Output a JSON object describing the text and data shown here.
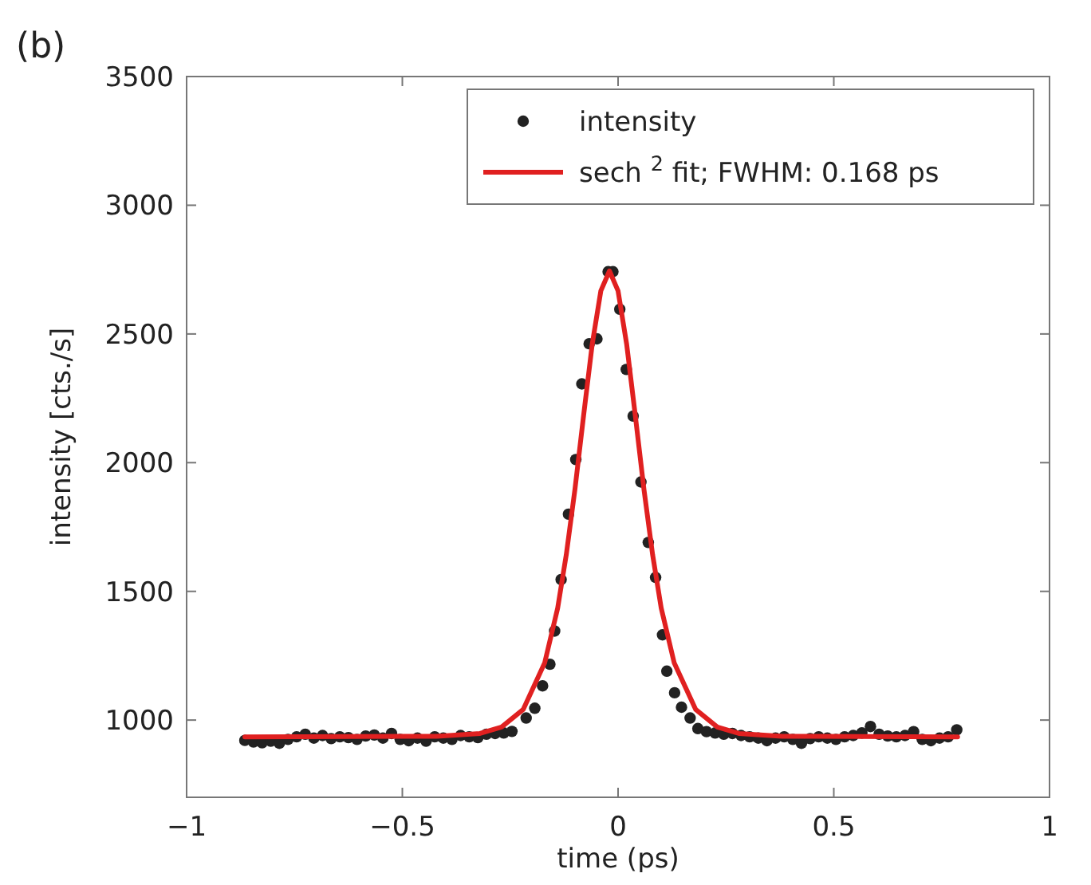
{
  "chart_data": {
    "type": "scatter",
    "title": "(b)",
    "xlabel": "time (ps)",
    "ylabel": "intensity [cts./s]",
    "xlim": [
      -1,
      1
    ],
    "ylim": [
      700,
      3500
    ],
    "xticks": [
      {
        "value": -1,
        "label": "−1"
      },
      {
        "value": -0.5,
        "label": "−0.5"
      },
      0,
      0.5,
      1
    ],
    "yticks": [
      1000,
      1500,
      2000,
      2500,
      3000,
      3500
    ],
    "grid": false,
    "legend": "top right",
    "series": [
      {
        "name": "intensity",
        "marker": "circle",
        "color": "#222222",
        "x": [
          -0.865,
          -0.845,
          -0.825,
          -0.805,
          -0.785,
          -0.765,
          -0.745,
          -0.725,
          -0.705,
          -0.685,
          -0.665,
          -0.645,
          -0.625,
          -0.605,
          -0.585,
          -0.565,
          -0.545,
          -0.525,
          -0.505,
          -0.485,
          -0.465,
          -0.445,
          -0.425,
          -0.405,
          -0.385,
          -0.365,
          -0.345,
          -0.325,
          -0.305,
          -0.285,
          -0.265,
          -0.246,
          -0.213,
          -0.193,
          -0.175,
          -0.158,
          -0.147,
          -0.132,
          -0.115,
          -0.098,
          -0.084,
          -0.067,
          -0.049,
          -0.023,
          -0.012,
          0.004,
          0.019,
          0.035,
          0.053,
          0.07,
          0.087,
          0.103,
          0.113,
          0.131,
          0.147,
          0.167,
          0.185,
          0.205,
          0.225,
          0.245,
          0.265,
          0.285,
          0.305,
          0.325,
          0.345,
          0.365,
          0.385,
          0.405,
          0.425,
          0.445,
          0.465,
          0.485,
          0.505,
          0.525,
          0.545,
          0.565,
          0.585,
          0.605,
          0.625,
          0.645,
          0.665,
          0.685,
          0.705,
          0.725,
          0.745,
          0.765,
          0.785
        ],
        "values": [
          921,
          915,
          912,
          918,
          910,
          925,
          935,
          945,
          930,
          940,
          928,
          935,
          932,
          925,
          938,
          942,
          930,
          948,
          925,
          920,
          930,
          918,
          935,
          930,
          925,
          940,
          935,
          932,
          945,
          948,
          950,
          956,
          1008,
          1046,
          1133,
          1217,
          1346,
          1546,
          1800,
          2012,
          2306,
          2462,
          2481,
          2742,
          2742,
          2596,
          2362,
          2181,
          1925,
          1690,
          1554,
          1331,
          1190,
          1106,
          1050,
          1008,
          967,
          955,
          950,
          945,
          948,
          940,
          935,
          930,
          920,
          930,
          935,
          925,
          910,
          928,
          935,
          930,
          925,
          935,
          940,
          950,
          975,
          945,
          938,
          935,
          940,
          955,
          925,
          920,
          930,
          935,
          962
        ]
      },
      {
        "name": "sech $^{2}$ fit; FWHM: 0.168 ps",
        "type": "line",
        "marker": "none",
        "color": "#e02020",
        "x": [
          -0.865,
          -0.42,
          -0.32,
          -0.27,
          -0.22,
          -0.17,
          -0.14,
          -0.12,
          -0.1,
          -0.08,
          -0.06,
          -0.04,
          -0.02,
          0,
          0.02,
          0.04,
          0.06,
          0.08,
          0.1,
          0.13,
          0.18,
          0.23,
          0.28,
          0.38,
          0.787
        ],
        "values": [
          935,
          937,
          948,
          973,
          1041,
          1223,
          1435,
          1643,
          1896,
          2182,
          2459,
          2667,
          2745,
          2667,
          2459,
          2182,
          1896,
          1643,
          1435,
          1223,
          1041,
          973,
          948,
          937,
          935
        ]
      }
    ]
  }
}
